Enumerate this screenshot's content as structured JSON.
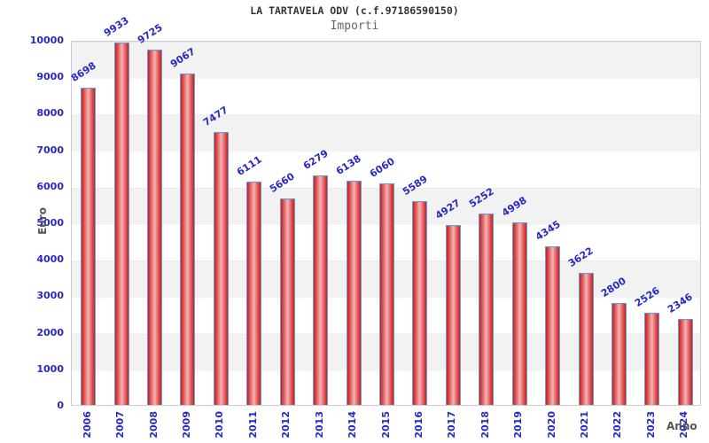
{
  "chart_data": {
    "type": "bar",
    "title": "LA TARTAVELA ODV (c.f.97186590150)",
    "subtitle": "Importi",
    "xlabel": "Anno",
    "ylabel": "Euro",
    "categories": [
      "2006",
      "2007",
      "2008",
      "2009",
      "2010",
      "2011",
      "2012",
      "2013",
      "2014",
      "2015",
      "2016",
      "2017",
      "2018",
      "2019",
      "2020",
      "2021",
      "2022",
      "2023",
      "2024"
    ],
    "values": [
      8698,
      9933,
      9725,
      9067,
      7477,
      6111,
      5660,
      6279,
      6138,
      6060,
      5589,
      4927,
      5252,
      4998,
      4345,
      3622,
      2800,
      2526,
      2346
    ],
    "ylim": [
      0,
      10000
    ],
    "ytick_step": 1000,
    "grid": "horizontal-bands",
    "legend": "none",
    "colors": {
      "bar_edge_red": "#ce1e1e",
      "bar_center_pink": "#f3b8b8",
      "bar_border_blue": "#58a0e0",
      "tick_label_blue": "#2828c6",
      "axis_title_gray": "#555555",
      "band_gray": "#f2f2f2",
      "plot_border": "#cccccc",
      "title_color": "#333333",
      "subtitle_color": "#666666"
    }
  }
}
